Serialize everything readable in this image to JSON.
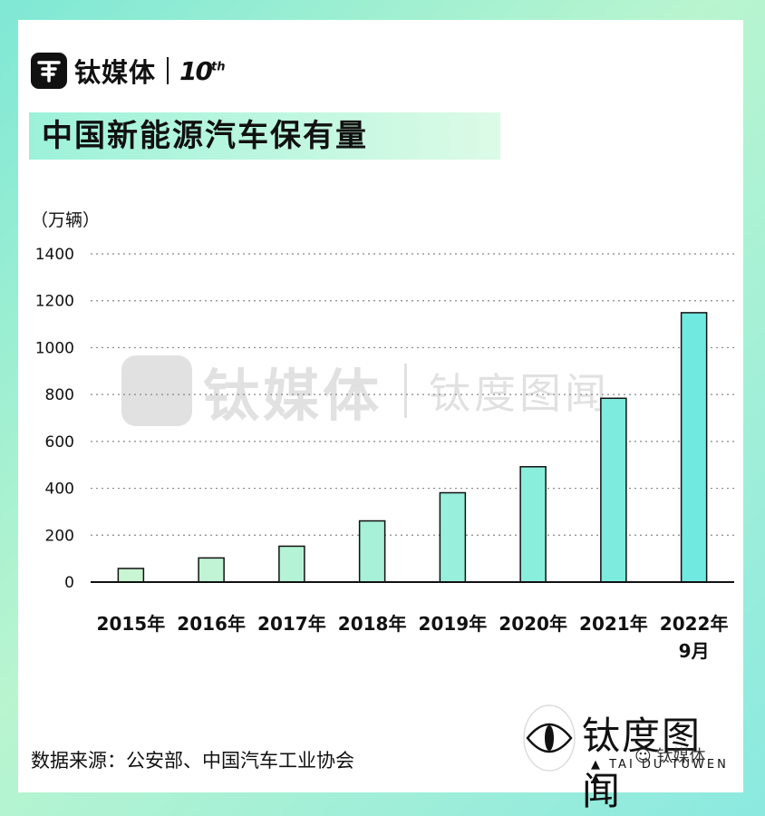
{
  "brand": {
    "name": "钛媒体",
    "anniversary": "10",
    "anniversary_sup": "th",
    "logo_icon": "ti-logo-icon"
  },
  "header": {
    "title": "中国新能源汽车保有量"
  },
  "chart_data": {
    "type": "bar",
    "title": "中国新能源汽车保有量",
    "ylabel": "（万辆）",
    "xlabel": "",
    "categories": [
      "2015年",
      "2016年",
      "2017年",
      "2018年",
      "2019年",
      "2020年",
      "2021年",
      "2022年\n9月"
    ],
    "values": [
      58,
      103,
      153,
      261,
      381,
      492,
      784,
      1149
    ],
    "ylim": [
      0,
      1400
    ],
    "yticks": [
      0,
      200,
      400,
      600,
      800,
      1000,
      1200,
      1400
    ],
    "grid": true,
    "bar_colors": [
      "#c8f5d2",
      "#c0f4d4",
      "#b4f3d6",
      "#a6f1d8",
      "#98efdb",
      "#8aeedd",
      "#7decdf",
      "#70eae1"
    ]
  },
  "footer": {
    "source": "数据来源：公安部、中国汽车工业协会",
    "tdtw_name": "钛度图闻",
    "tdtw_sub": "▲ TAI DU TUWEN ▲",
    "wechat_label": "钛媒体"
  },
  "watermark": {
    "name": "钛媒体",
    "name2": "钛度图闻",
    "sub": "▲ TAI DU TUWEN ▲"
  },
  "colors": {
    "accent": "#8aeedd",
    "bar_stroke": "#111111"
  }
}
